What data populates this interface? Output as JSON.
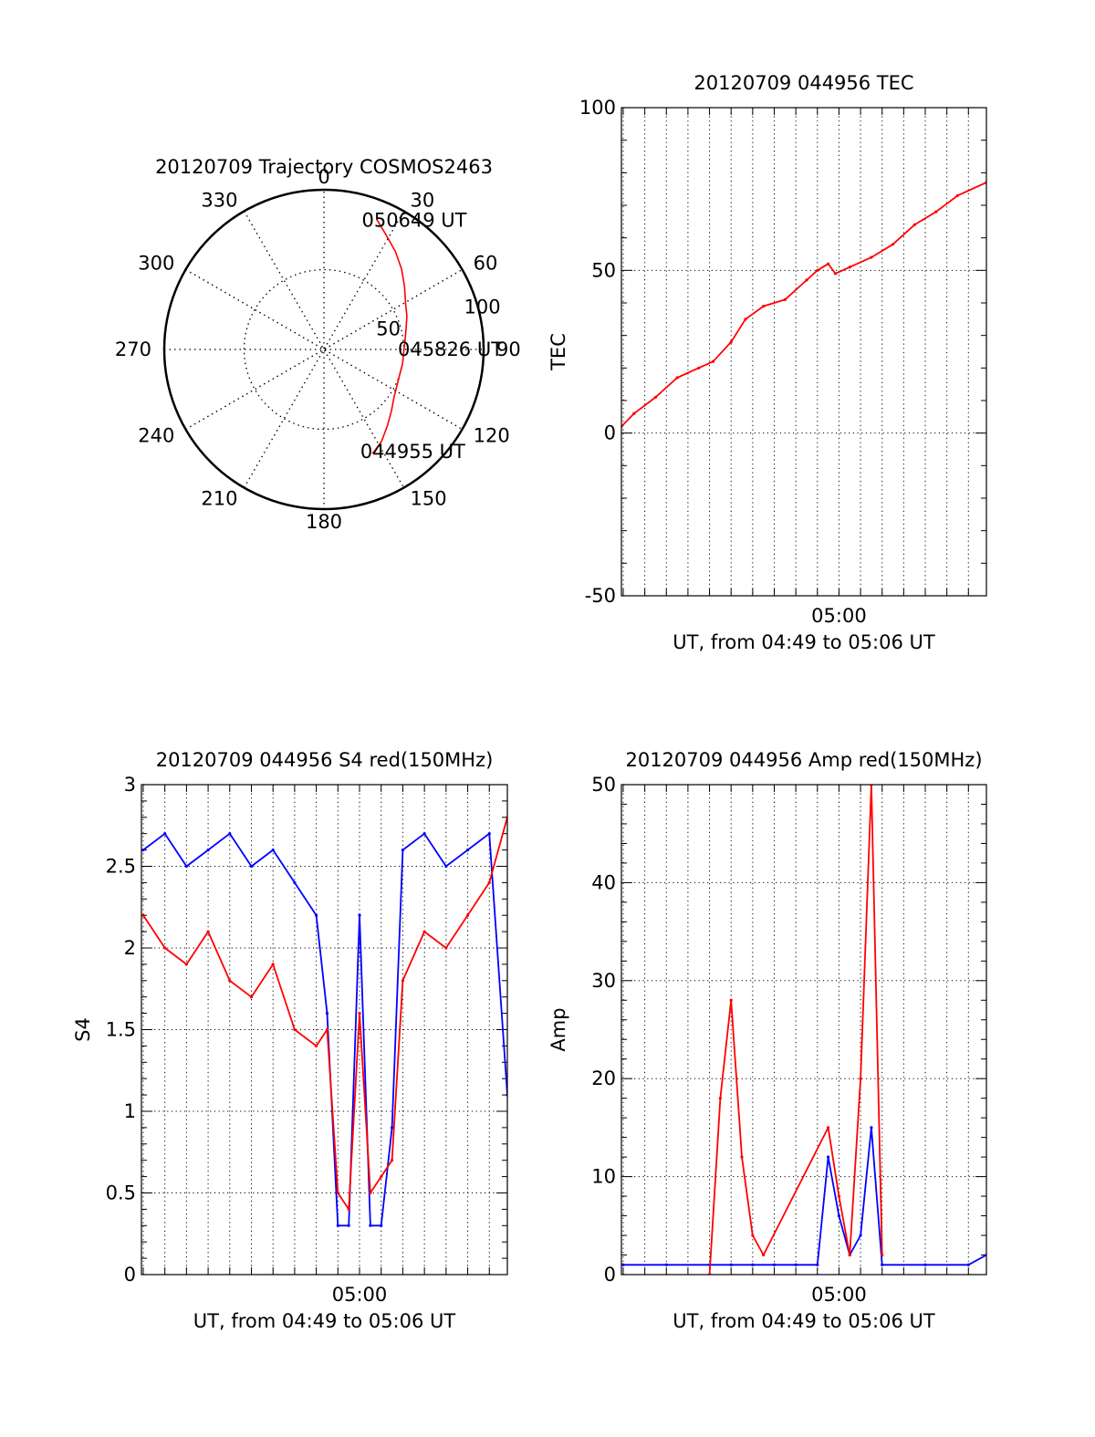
{
  "colors": {
    "red": "#ff0000",
    "blue": "#0000ff",
    "axis": "#000000",
    "grid": "#000000"
  },
  "chart_data": [
    {
      "type": "polar",
      "title": "20120709 Trajectory COSMOS2463",
      "angle_ticks": [
        "0",
        "30",
        "60",
        "90",
        "120",
        "150",
        "180",
        "210",
        "240",
        "270",
        "300",
        "330"
      ],
      "radial_tick_labels": [
        "50",
        "100"
      ],
      "radial_max": 100,
      "grid": true,
      "series": [
        {
          "color": "red",
          "points_az_r": [
            [
              155,
              72
            ],
            [
              148,
              68
            ],
            [
              140,
              62
            ],
            [
              132,
              57
            ],
            [
              124,
              53
            ],
            [
              116,
              51
            ],
            [
              108,
              50
            ],
            [
              100,
              50
            ],
            [
              92,
              50
            ],
            [
              84,
              51
            ],
            [
              76,
              53
            ],
            [
              68,
              56
            ],
            [
              60,
              59
            ],
            [
              52,
              64
            ],
            [
              44,
              70
            ],
            [
              36,
              76
            ],
            [
              28,
              82
            ],
            [
              22,
              88
            ]
          ]
        }
      ],
      "annotations": [
        {
          "text": "050649 UT",
          "az": 20,
          "r": 86
        },
        {
          "text": "045826 UT",
          "az": 90,
          "r": 52
        },
        {
          "text": "044955 UT",
          "az": 156,
          "r": 70
        }
      ]
    },
    {
      "type": "line",
      "title": "20120709 044956 TEC",
      "xlabel": "UT, from 04:49 to 05:06 UT",
      "ylabel": "TEC",
      "xlim": [
        "04:49:55",
        "05:06:50"
      ],
      "ylim": [
        -50,
        100
      ],
      "yticks": [
        "-50",
        "0",
        "50",
        "100"
      ],
      "xtick_labels": [
        {
          "t": "05:00",
          "label": "05:00"
        }
      ],
      "grid": true,
      "series": [
        {
          "color": "red",
          "x": [
            "04:49:55",
            "04:50:30",
            "04:51:30",
            "04:52:30",
            "04:53:30",
            "04:54:10",
            "04:55:00",
            "04:55:40",
            "04:56:30",
            "04:57:30",
            "04:58:30",
            "04:59:00",
            "04:59:30",
            "04:59:50",
            "05:00:30",
            "05:01:30",
            "05:02:30",
            "05:03:30",
            "05:04:30",
            "05:05:30",
            "05:06:50"
          ],
          "y": [
            2,
            6,
            11,
            17,
            20,
            22,
            28,
            35,
            39,
            41,
            47,
            50,
            52,
            49,
            51,
            54,
            58,
            64,
            68,
            73,
            77
          ]
        }
      ]
    },
    {
      "type": "line",
      "title": "20120709 044956 S4 red(150MHz)",
      "xlabel": "UT, from 04:49 to 05:06 UT",
      "ylabel": "S4",
      "xlim": [
        "04:49:55",
        "05:06:50"
      ],
      "ylim": [
        0,
        3
      ],
      "yticks": [
        "0",
        "0.5",
        "1",
        "1.5",
        "2",
        "2.5",
        "3"
      ],
      "xtick_labels": [
        {
          "t": "05:00",
          "label": "05:00"
        }
      ],
      "grid": true,
      "series": [
        {
          "color": "blue",
          "x": [
            "04:50:00",
            "04:51:00",
            "04:52:00",
            "04:53:00",
            "04:54:00",
            "04:55:00",
            "04:56:00",
            "04:57:00",
            "04:58:00",
            "04:58:30",
            "04:59:00",
            "04:59:30",
            "05:00:00",
            "05:00:30",
            "05:01:00",
            "05:01:30",
            "05:02:00",
            "05:03:00",
            "05:04:00",
            "05:05:00",
            "05:06:00",
            "05:06:50"
          ],
          "y": [
            2.6,
            2.7,
            2.5,
            2.6,
            2.7,
            2.5,
            2.6,
            2.4,
            2.2,
            1.6,
            0.3,
            0.3,
            2.2,
            0.3,
            0.3,
            0.9,
            2.6,
            2.7,
            2.5,
            2.6,
            2.7,
            1.1
          ]
        },
        {
          "color": "red",
          "x": [
            "04:50:00",
            "04:51:00",
            "04:52:00",
            "04:53:00",
            "04:54:00",
            "04:55:00",
            "04:56:00",
            "04:57:00",
            "04:58:00",
            "04:58:30",
            "04:59:00",
            "04:59:30",
            "05:00:00",
            "05:00:30",
            "05:01:00",
            "05:01:30",
            "05:02:00",
            "05:03:00",
            "05:04:00",
            "05:05:00",
            "05:06:00",
            "05:06:50"
          ],
          "y": [
            2.2,
            2.0,
            1.9,
            2.1,
            1.8,
            1.7,
            1.9,
            1.5,
            1.4,
            1.5,
            0.5,
            0.4,
            1.6,
            0.5,
            0.6,
            0.7,
            1.8,
            2.1,
            2.0,
            2.2,
            2.4,
            2.8
          ]
        }
      ]
    },
    {
      "type": "line",
      "title": "20120709 044956 Amp red(150MHz)",
      "xlabel": "UT, from 04:49 to 05:06 UT",
      "ylabel": "Amp",
      "xlim": [
        "04:49:55",
        "05:06:50"
      ],
      "ylim": [
        0,
        50
      ],
      "yticks": [
        "0",
        "10",
        "20",
        "30",
        "40",
        "50"
      ],
      "xtick_labels": [
        {
          "t": "05:00",
          "label": "05:00"
        }
      ],
      "grid": true,
      "series": [
        {
          "color": "blue",
          "x": [
            "04:50:00",
            "04:52:00",
            "04:54:00",
            "04:55:00",
            "04:56:00",
            "04:57:00",
            "04:58:00",
            "04:59:00",
            "04:59:30",
            "05:00:00",
            "05:00:30",
            "05:01:00",
            "05:01:30",
            "05:02:00",
            "05:04:00",
            "05:06:00",
            "05:06:50"
          ],
          "y": [
            1,
            1,
            1,
            1,
            1,
            1,
            1,
            1,
            12,
            6,
            2,
            4,
            15,
            1,
            1,
            1,
            2
          ]
        },
        {
          "color": "red",
          "x": [
            "04:54:00",
            "04:54:30",
            "04:55:00",
            "04:55:30",
            "04:56:00",
            "04:56:30",
            "04:59:30",
            "05:00:00",
            "05:00:30",
            "05:01:00",
            "05:01:30",
            "05:02:00"
          ],
          "y": [
            0,
            18,
            28,
            12,
            4,
            2,
            15,
            8,
            2,
            20,
            50,
            2
          ]
        }
      ]
    }
  ]
}
